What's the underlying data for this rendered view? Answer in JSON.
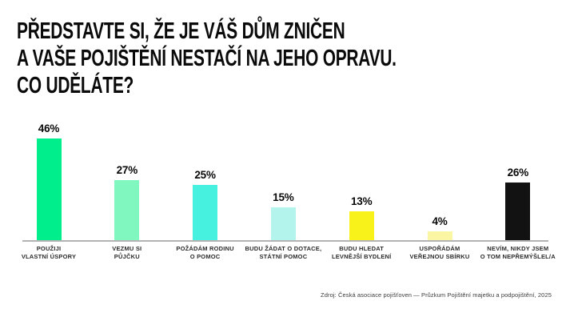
{
  "title": {
    "lines": [
      "PŘEDSTAVTE SI, ŽE JE VÁŠ DŮM ZNIČEN",
      "A VAŠE POJIŠTĚNÍ NESTAČÍ NA JEHO OPRAVU.",
      "CO UDĚLÁTE?"
    ]
  },
  "source": "Zdroj: Česká asociace pojišťoven — Průzkum Pojištění majetku a podpojištění, 2025",
  "chart_data": {
    "type": "bar",
    "title": "PŘEDSTAVTE SI, ŽE JE VÁŠ DŮM ZNIČEN A VAŠE POJIŠTĚNÍ NESTAČÍ NA JEHO OPRAVU. CO UDĚLÁTE?",
    "unit": "%",
    "ylim": [
      0,
      50
    ],
    "grid": false,
    "legend": "none",
    "baseline_color": "#b3b3b3",
    "text_color": "#0a0a0a",
    "categories": [
      "POUŽIJI VLASTNÍ ÚSPORY",
      "VEZMU SI PŮJČKU",
      "POŽÁDÁM RODINU O POMOC",
      "BUDU ŽÁDAT O DOTACE, STÁTNÍ POMOC",
      "BUDU HLEDAT LEVNĚJŠÍ BYDLENÍ",
      "USPOŘÁDÁM VEŘEJNOU SBÍRKU",
      "NEVÍM, NIKDY JSEM O TOM NEPŘEMÝŠLEL/A"
    ],
    "values": [
      46,
      27,
      25,
      15,
      13,
      4,
      26
    ],
    "bars": [
      {
        "label_lines": [
          "POUŽIJI",
          "VLASTNÍ ÚSPORY"
        ],
        "value": 46,
        "display_value": "46%",
        "color": "#00EE8C"
      },
      {
        "label_lines": [
          "VEZMU SI",
          "PŮJČKU"
        ],
        "value": 27,
        "display_value": "27%",
        "color": "#7FF7BE"
      },
      {
        "label_lines": [
          "POŽÁDÁM RODINU",
          "O POMOC"
        ],
        "value": 25,
        "display_value": "25%",
        "color": "#47F1E0"
      },
      {
        "label_lines": [
          "BUDU ŽÁDAT O DOTACE,",
          "STÁTNÍ POMOC"
        ],
        "value": 15,
        "display_value": "15%",
        "color": "#B3F4EC"
      },
      {
        "label_lines": [
          "BUDU HLEDAT",
          "LEVNĚJŠÍ BYDLENÍ"
        ],
        "value": 13,
        "display_value": "13%",
        "color": "#F8F11A"
      },
      {
        "label_lines": [
          "USPOŘÁDÁM",
          "VEŘEJNOU SBÍRKU"
        ],
        "value": 4,
        "display_value": "4%",
        "color": "#FBF6A4"
      },
      {
        "label_lines": [
          "NEVÍM, NIKDY JSEM",
          "O TOM NEPŘEMÝŠLEL/A"
        ],
        "value": 26,
        "display_value": "26%",
        "color": "#121212"
      }
    ]
  }
}
